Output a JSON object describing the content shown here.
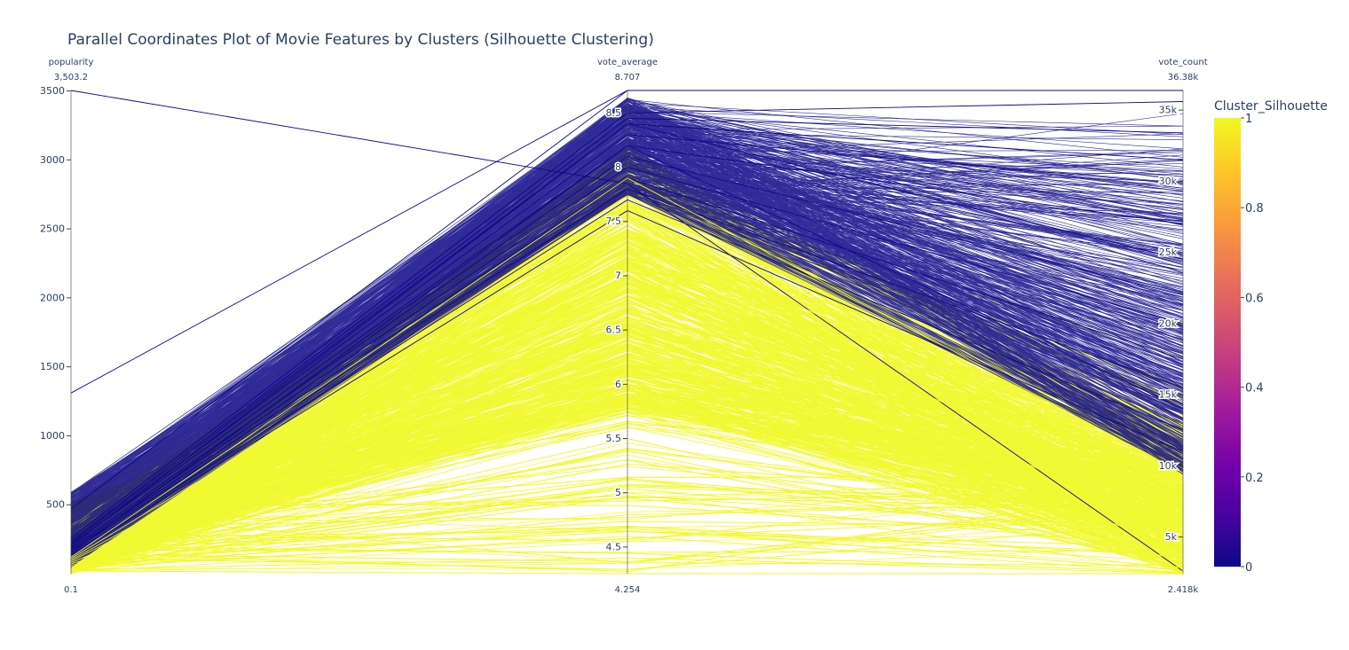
{
  "chart_data": {
    "type": "parallel-coordinates",
    "title": "Parallel Coordinates Plot of Movie Features by Clusters (Silhouette Clustering)",
    "dimensions": [
      {
        "label": "popularity",
        "range": [
          0.1,
          3503.2
        ],
        "range_labels": {
          "min": "0.1",
          "max": "3,503.2"
        },
        "ticks": [
          500,
          1000,
          1500,
          2000,
          2500,
          3000,
          3500
        ],
        "tick_labels": [
          "500",
          "1000",
          "1500",
          "2000",
          "2500",
          "3000",
          "3500"
        ]
      },
      {
        "label": "vote_average",
        "range": [
          4.254,
          8.707
        ],
        "range_labels": {
          "min": "4.254",
          "max": "8.707"
        },
        "ticks": [
          4.5,
          5,
          5.5,
          6,
          6.5,
          7,
          7.5,
          8,
          8.5
        ],
        "tick_labels": [
          "4.5",
          "5",
          "5.5",
          "6",
          "6.5",
          "7",
          "7.5",
          "8",
          "8.5"
        ]
      },
      {
        "label": "vote_count",
        "range": [
          2418,
          36380
        ],
        "range_labels": {
          "min": "2.418k",
          "max": "36.38k"
        },
        "ticks": [
          5000,
          10000,
          15000,
          20000,
          25000,
          30000,
          35000
        ],
        "tick_labels": [
          "5k",
          "10k",
          "15k",
          "20k",
          "25k",
          "30k",
          "35k"
        ]
      }
    ],
    "color_variable": {
      "name": "Cluster_Silhouette",
      "range": [
        0,
        1
      ],
      "colorscale": "Plasma",
      "colors": [
        "#0d0887",
        "#46039f",
        "#7201a8",
        "#9c179e",
        "#bd3786",
        "#d8576b",
        "#ed7953",
        "#fb9f3a",
        "#fdca26",
        "#f0f921"
      ],
      "ticks": [
        0,
        0.2,
        0.4,
        0.6,
        0.8,
        1
      ],
      "tick_labels": [
        "0",
        "0.2",
        "0.4",
        "0.6",
        "0.8",
        "1"
      ]
    },
    "cluster_colors": {
      "0": "#0d0887",
      "1": "#f0f921"
    },
    "grid": false,
    "legend_placement": "right",
    "sample_lines": [
      {
        "cluster": 0,
        "values": [
          3503.2,
          7.85,
          2600
        ]
      },
      {
        "cluster": 0,
        "values": [
          1310,
          8.707,
          36380
        ]
      },
      {
        "cluster": 0,
        "values": [
          470,
          8.707,
          36380
        ]
      },
      {
        "cluster": 0,
        "values": [
          260,
          8.5,
          35600
        ]
      },
      {
        "cluster": 0,
        "values": [
          240,
          8.45,
          33400
        ]
      },
      {
        "cluster": 0,
        "values": [
          230,
          8.4,
          31500
        ]
      },
      {
        "cluster": 0,
        "values": [
          220,
          8.3,
          29800
        ]
      },
      {
        "cluster": 0,
        "values": [
          210,
          8.2,
          27000
        ]
      },
      {
        "cluster": 0,
        "values": [
          200,
          8.4,
          24500
        ]
      },
      {
        "cluster": 0,
        "values": [
          190,
          8.1,
          22000
        ]
      },
      {
        "cluster": 0,
        "values": [
          180,
          8.0,
          20000
        ]
      },
      {
        "cluster": 0,
        "values": [
          170,
          7.9,
          17500
        ]
      },
      {
        "cluster": 0,
        "values": [
          160,
          7.8,
          15500
        ]
      },
      {
        "cluster": 0,
        "values": [
          150,
          8.2,
          14000
        ]
      },
      {
        "cluster": 0,
        "values": [
          140,
          7.7,
          12500
        ]
      },
      {
        "cluster": 0,
        "values": [
          130,
          7.6,
          11000
        ]
      },
      {
        "cluster": 1,
        "values": [
          120,
          7.9,
          9500
        ]
      },
      {
        "cluster": 1,
        "values": [
          110,
          7.5,
          8000
        ]
      },
      {
        "cluster": 1,
        "values": [
          100,
          7.2,
          6500
        ]
      },
      {
        "cluster": 1,
        "values": [
          90,
          7.0,
          5000
        ]
      },
      {
        "cluster": 1,
        "values": [
          80,
          6.5,
          4000
        ]
      },
      {
        "cluster": 1,
        "values": [
          70,
          6.0,
          3200
        ]
      },
      {
        "cluster": 1,
        "values": [
          60,
          5.5,
          2800
        ]
      },
      {
        "cluster": 1,
        "values": [
          50,
          5.0,
          2600
        ]
      },
      {
        "cluster": 1,
        "values": [
          40,
          4.6,
          2500
        ]
      },
      {
        "cluster": 1,
        "values": [
          30,
          4.4,
          2450
        ]
      },
      {
        "cluster": 1,
        "values": [
          20,
          4.254,
          2418
        ]
      }
    ]
  }
}
